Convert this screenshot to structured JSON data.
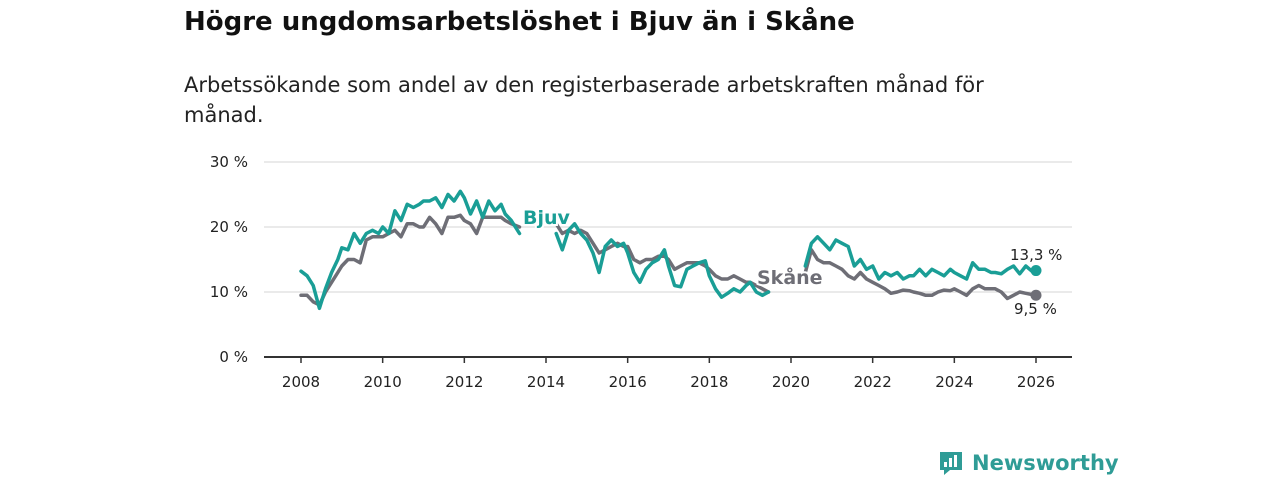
{
  "title": "Högre ungdomsarbetslöshet i Bjuv än i Skåne",
  "subtitle": "Arbetssökande som andel av den registerbaserade arbetskraften månad för månad.",
  "brand": {
    "name": "Newsworthy",
    "icon": "bar-chart-logo-icon"
  },
  "chart_data": {
    "type": "line",
    "title": "Högre ungdomsarbetslöshet i Bjuv än i Skåne",
    "xlabel": "",
    "ylabel": "",
    "xlim": [
      2008,
      2026
    ],
    "ylim": [
      0,
      30
    ],
    "grid": true,
    "x_ticks": [
      "2008",
      "2010",
      "2012",
      "2014",
      "2016",
      "2018",
      "2020",
      "2022",
      "2024",
      "2026"
    ],
    "y_ticks": [
      "0 %",
      "10 %",
      "20 %",
      "30 %"
    ],
    "series": [
      {
        "name": "Bjuv",
        "color": "#1a9e96",
        "segments": [
          [
            [
              2008.0,
              13.2
            ],
            [
              2008.15,
              12.5
            ],
            [
              2008.3,
              11.0
            ],
            [
              2008.45,
              7.5
            ],
            [
              2008.6,
              10.5
            ],
            [
              2008.75,
              13.0
            ],
            [
              2008.9,
              15.0
            ],
            [
              2009.0,
              16.8
            ],
            [
              2009.15,
              16.5
            ],
            [
              2009.3,
              19.0
            ],
            [
              2009.45,
              17.5
            ],
            [
              2009.6,
              19.0
            ],
            [
              2009.75,
              19.5
            ],
            [
              2009.9,
              19.0
            ],
            [
              2010.0,
              20.0
            ],
            [
              2010.15,
              19.0
            ],
            [
              2010.3,
              22.5
            ],
            [
              2010.45,
              21.0
            ],
            [
              2010.6,
              23.5
            ],
            [
              2010.75,
              23.0
            ],
            [
              2010.9,
              23.5
            ],
            [
              2011.0,
              24.0
            ],
            [
              2011.15,
              24.0
            ],
            [
              2011.3,
              24.5
            ],
            [
              2011.45,
              23.0
            ],
            [
              2011.6,
              25.0
            ],
            [
              2011.75,
              24.0
            ],
            [
              2011.9,
              25.5
            ],
            [
              2012.0,
              24.5
            ],
            [
              2012.15,
              22.0
            ],
            [
              2012.3,
              24.0
            ],
            [
              2012.45,
              21.5
            ],
            [
              2012.6,
              24.0
            ],
            [
              2012.75,
              22.5
            ],
            [
              2012.9,
              23.5
            ],
            [
              2013.0,
              22.0
            ],
            [
              2013.15,
              21.0
            ],
            [
              2013.35,
              19.0
            ]
          ],
          [
            [
              2014.25,
              19.0
            ],
            [
              2014.4,
              16.5
            ],
            [
              2014.55,
              19.5
            ],
            [
              2014.7,
              20.5
            ],
            [
              2014.85,
              19.0
            ],
            [
              2015.0,
              18.0
            ],
            [
              2015.15,
              16.0
            ],
            [
              2015.3,
              13.0
            ],
            [
              2015.45,
              17.0
            ],
            [
              2015.6,
              18.0
            ],
            [
              2015.75,
              17.0
            ],
            [
              2015.9,
              17.5
            ],
            [
              2016.0,
              16.0
            ],
            [
              2016.15,
              13.0
            ],
            [
              2016.3,
              11.5
            ],
            [
              2016.45,
              13.5
            ],
            [
              2016.6,
              14.5
            ],
            [
              2016.75,
              15.0
            ],
            [
              2016.9,
              16.5
            ],
            [
              2017.0,
              14.0
            ],
            [
              2017.15,
              11.0
            ],
            [
              2017.3,
              10.8
            ],
            [
              2017.45,
              13.5
            ],
            [
              2017.6,
              14.0
            ],
            [
              2017.75,
              14.5
            ],
            [
              2017.9,
              14.8
            ],
            [
              2018.0,
              12.5
            ],
            [
              2018.15,
              10.5
            ],
            [
              2018.3,
              9.2
            ],
            [
              2018.45,
              9.8
            ],
            [
              2018.6,
              10.5
            ],
            [
              2018.75,
              10.0
            ],
            [
              2018.9,
              11.0
            ],
            [
              2019.0,
              11.5
            ],
            [
              2019.15,
              10.0
            ],
            [
              2019.3,
              9.5
            ],
            [
              2019.45,
              10.0
            ]
          ],
          [
            [
              2020.35,
              14.0
            ],
            [
              2020.5,
              17.5
            ],
            [
              2020.65,
              18.5
            ],
            [
              2020.8,
              17.5
            ],
            [
              2020.95,
              16.5
            ],
            [
              2021.1,
              18.0
            ],
            [
              2021.25,
              17.5
            ],
            [
              2021.4,
              17.0
            ],
            [
              2021.55,
              14.0
            ],
            [
              2021.7,
              15.0
            ],
            [
              2021.85,
              13.5
            ],
            [
              2022.0,
              14.0
            ],
            [
              2022.15,
              12.0
            ],
            [
              2022.3,
              13.0
            ],
            [
              2022.45,
              12.5
            ],
            [
              2022.6,
              13.0
            ],
            [
              2022.75,
              12.0
            ],
            [
              2022.9,
              12.5
            ],
            [
              2023.0,
              12.5
            ],
            [
              2023.15,
              13.5
            ],
            [
              2023.3,
              12.5
            ],
            [
              2023.45,
              13.5
            ],
            [
              2023.6,
              13.0
            ],
            [
              2023.75,
              12.5
            ],
            [
              2023.9,
              13.5
            ],
            [
              2024.0,
              13.0
            ],
            [
              2024.15,
              12.5
            ],
            [
              2024.3,
              12.0
            ],
            [
              2024.45,
              14.5
            ],
            [
              2024.6,
              13.5
            ],
            [
              2024.75,
              13.5
            ],
            [
              2024.9,
              13.0
            ],
            [
              2025.0,
              13.0
            ],
            [
              2025.15,
              12.8
            ],
            [
              2025.3,
              13.5
            ],
            [
              2025.45,
              14.0
            ],
            [
              2025.6,
              12.8
            ],
            [
              2025.75,
              14.0
            ],
            [
              2025.9,
              13.2
            ],
            [
              2026.0,
              13.3
            ]
          ]
        ]
      },
      {
        "name": "Skåne",
        "color": "#6e6e76",
        "segments": [
          [
            [
              2008.0,
              9.5
            ],
            [
              2008.15,
              9.5
            ],
            [
              2008.3,
              8.5
            ],
            [
              2008.45,
              8.0
            ],
            [
              2008.6,
              10.0
            ],
            [
              2008.75,
              11.5
            ],
            [
              2008.9,
              13.0
            ],
            [
              2009.0,
              14.0
            ],
            [
              2009.15,
              15.0
            ],
            [
              2009.3,
              15.0
            ],
            [
              2009.45,
              14.5
            ],
            [
              2009.6,
              18.0
            ],
            [
              2009.75,
              18.5
            ],
            [
              2009.9,
              18.5
            ],
            [
              2010.0,
              18.5
            ],
            [
              2010.15,
              19.0
            ],
            [
              2010.3,
              19.5
            ],
            [
              2010.45,
              18.5
            ],
            [
              2010.6,
              20.5
            ],
            [
              2010.75,
              20.5
            ],
            [
              2010.9,
              20.0
            ],
            [
              2011.0,
              20.0
            ],
            [
              2011.15,
              21.5
            ],
            [
              2011.3,
              20.5
            ],
            [
              2011.45,
              19.0
            ],
            [
              2011.6,
              21.5
            ],
            [
              2011.75,
              21.5
            ],
            [
              2011.9,
              21.8
            ],
            [
              2012.0,
              21.0
            ],
            [
              2012.15,
              20.5
            ],
            [
              2012.3,
              19.0
            ],
            [
              2012.45,
              21.5
            ],
            [
              2012.6,
              21.5
            ],
            [
              2012.75,
              21.5
            ],
            [
              2012.9,
              21.5
            ],
            [
              2013.0,
              21.0
            ],
            [
              2013.15,
              20.5
            ],
            [
              2013.35,
              20.0
            ]
          ],
          [
            [
              2014.25,
              20.5
            ],
            [
              2014.4,
              19.0
            ],
            [
              2014.55,
              19.5
            ],
            [
              2014.7,
              19.0
            ],
            [
              2014.85,
              19.5
            ],
            [
              2015.0,
              19.0
            ],
            [
              2015.15,
              17.5
            ],
            [
              2015.3,
              16.0
            ],
            [
              2015.45,
              16.5
            ],
            [
              2015.6,
              17.0
            ],
            [
              2015.75,
              17.5
            ],
            [
              2015.9,
              17.0
            ],
            [
              2016.0,
              17.0
            ],
            [
              2016.15,
              15.0
            ],
            [
              2016.3,
              14.5
            ],
            [
              2016.45,
              15.0
            ],
            [
              2016.6,
              15.0
            ],
            [
              2016.75,
              15.5
            ],
            [
              2016.9,
              15.5
            ],
            [
              2017.0,
              15.0
            ],
            [
              2017.15,
              13.5
            ],
            [
              2017.3,
              14.0
            ],
            [
              2017.45,
              14.5
            ],
            [
              2017.6,
              14.5
            ],
            [
              2017.75,
              14.5
            ],
            [
              2017.9,
              14.0
            ],
            [
              2018.0,
              13.5
            ],
            [
              2018.15,
              12.5
            ],
            [
              2018.3,
              12.0
            ],
            [
              2018.45,
              12.0
            ],
            [
              2018.6,
              12.5
            ],
            [
              2018.75,
              12.0
            ],
            [
              2018.9,
              11.5
            ],
            [
              2019.0,
              11.5
            ],
            [
              2019.15,
              11.0
            ],
            [
              2019.3,
              10.5
            ],
            [
              2019.45,
              10.0
            ]
          ],
          [
            [
              2020.35,
              13.0
            ],
            [
              2020.5,
              16.5
            ],
            [
              2020.65,
              15.0
            ],
            [
              2020.8,
              14.5
            ],
            [
              2020.95,
              14.5
            ],
            [
              2021.1,
              14.0
            ],
            [
              2021.25,
              13.5
            ],
            [
              2021.4,
              12.5
            ],
            [
              2021.55,
              12.0
            ],
            [
              2021.7,
              13.0
            ],
            [
              2021.85,
              12.0
            ],
            [
              2022.0,
              11.5
            ],
            [
              2022.15,
              11.0
            ],
            [
              2022.3,
              10.5
            ],
            [
              2022.45,
              9.8
            ],
            [
              2022.6,
              10.0
            ],
            [
              2022.75,
              10.3
            ],
            [
              2022.9,
              10.2
            ],
            [
              2023.0,
              10.0
            ],
            [
              2023.15,
              9.8
            ],
            [
              2023.3,
              9.5
            ],
            [
              2023.45,
              9.5
            ],
            [
              2023.6,
              10.0
            ],
            [
              2023.75,
              10.3
            ],
            [
              2023.9,
              10.2
            ],
            [
              2024.0,
              10.5
            ],
            [
              2024.15,
              10.0
            ],
            [
              2024.3,
              9.5
            ],
            [
              2024.45,
              10.5
            ],
            [
              2024.6,
              11.0
            ],
            [
              2024.75,
              10.5
            ],
            [
              2024.9,
              10.5
            ],
            [
              2025.0,
              10.5
            ],
            [
              2025.15,
              10.0
            ],
            [
              2025.3,
              9.0
            ],
            [
              2025.45,
              9.5
            ],
            [
              2025.6,
              10.0
            ],
            [
              2025.75,
              9.8
            ],
            [
              2025.9,
              9.6
            ],
            [
              2026.0,
              9.5
            ]
          ]
        ]
      }
    ],
    "annotations": {
      "bjuv_label": "Bjuv",
      "skane_label": "Skåne",
      "bjuv_end_value": "13,3 %",
      "skane_end_value": "9,5 %"
    }
  }
}
